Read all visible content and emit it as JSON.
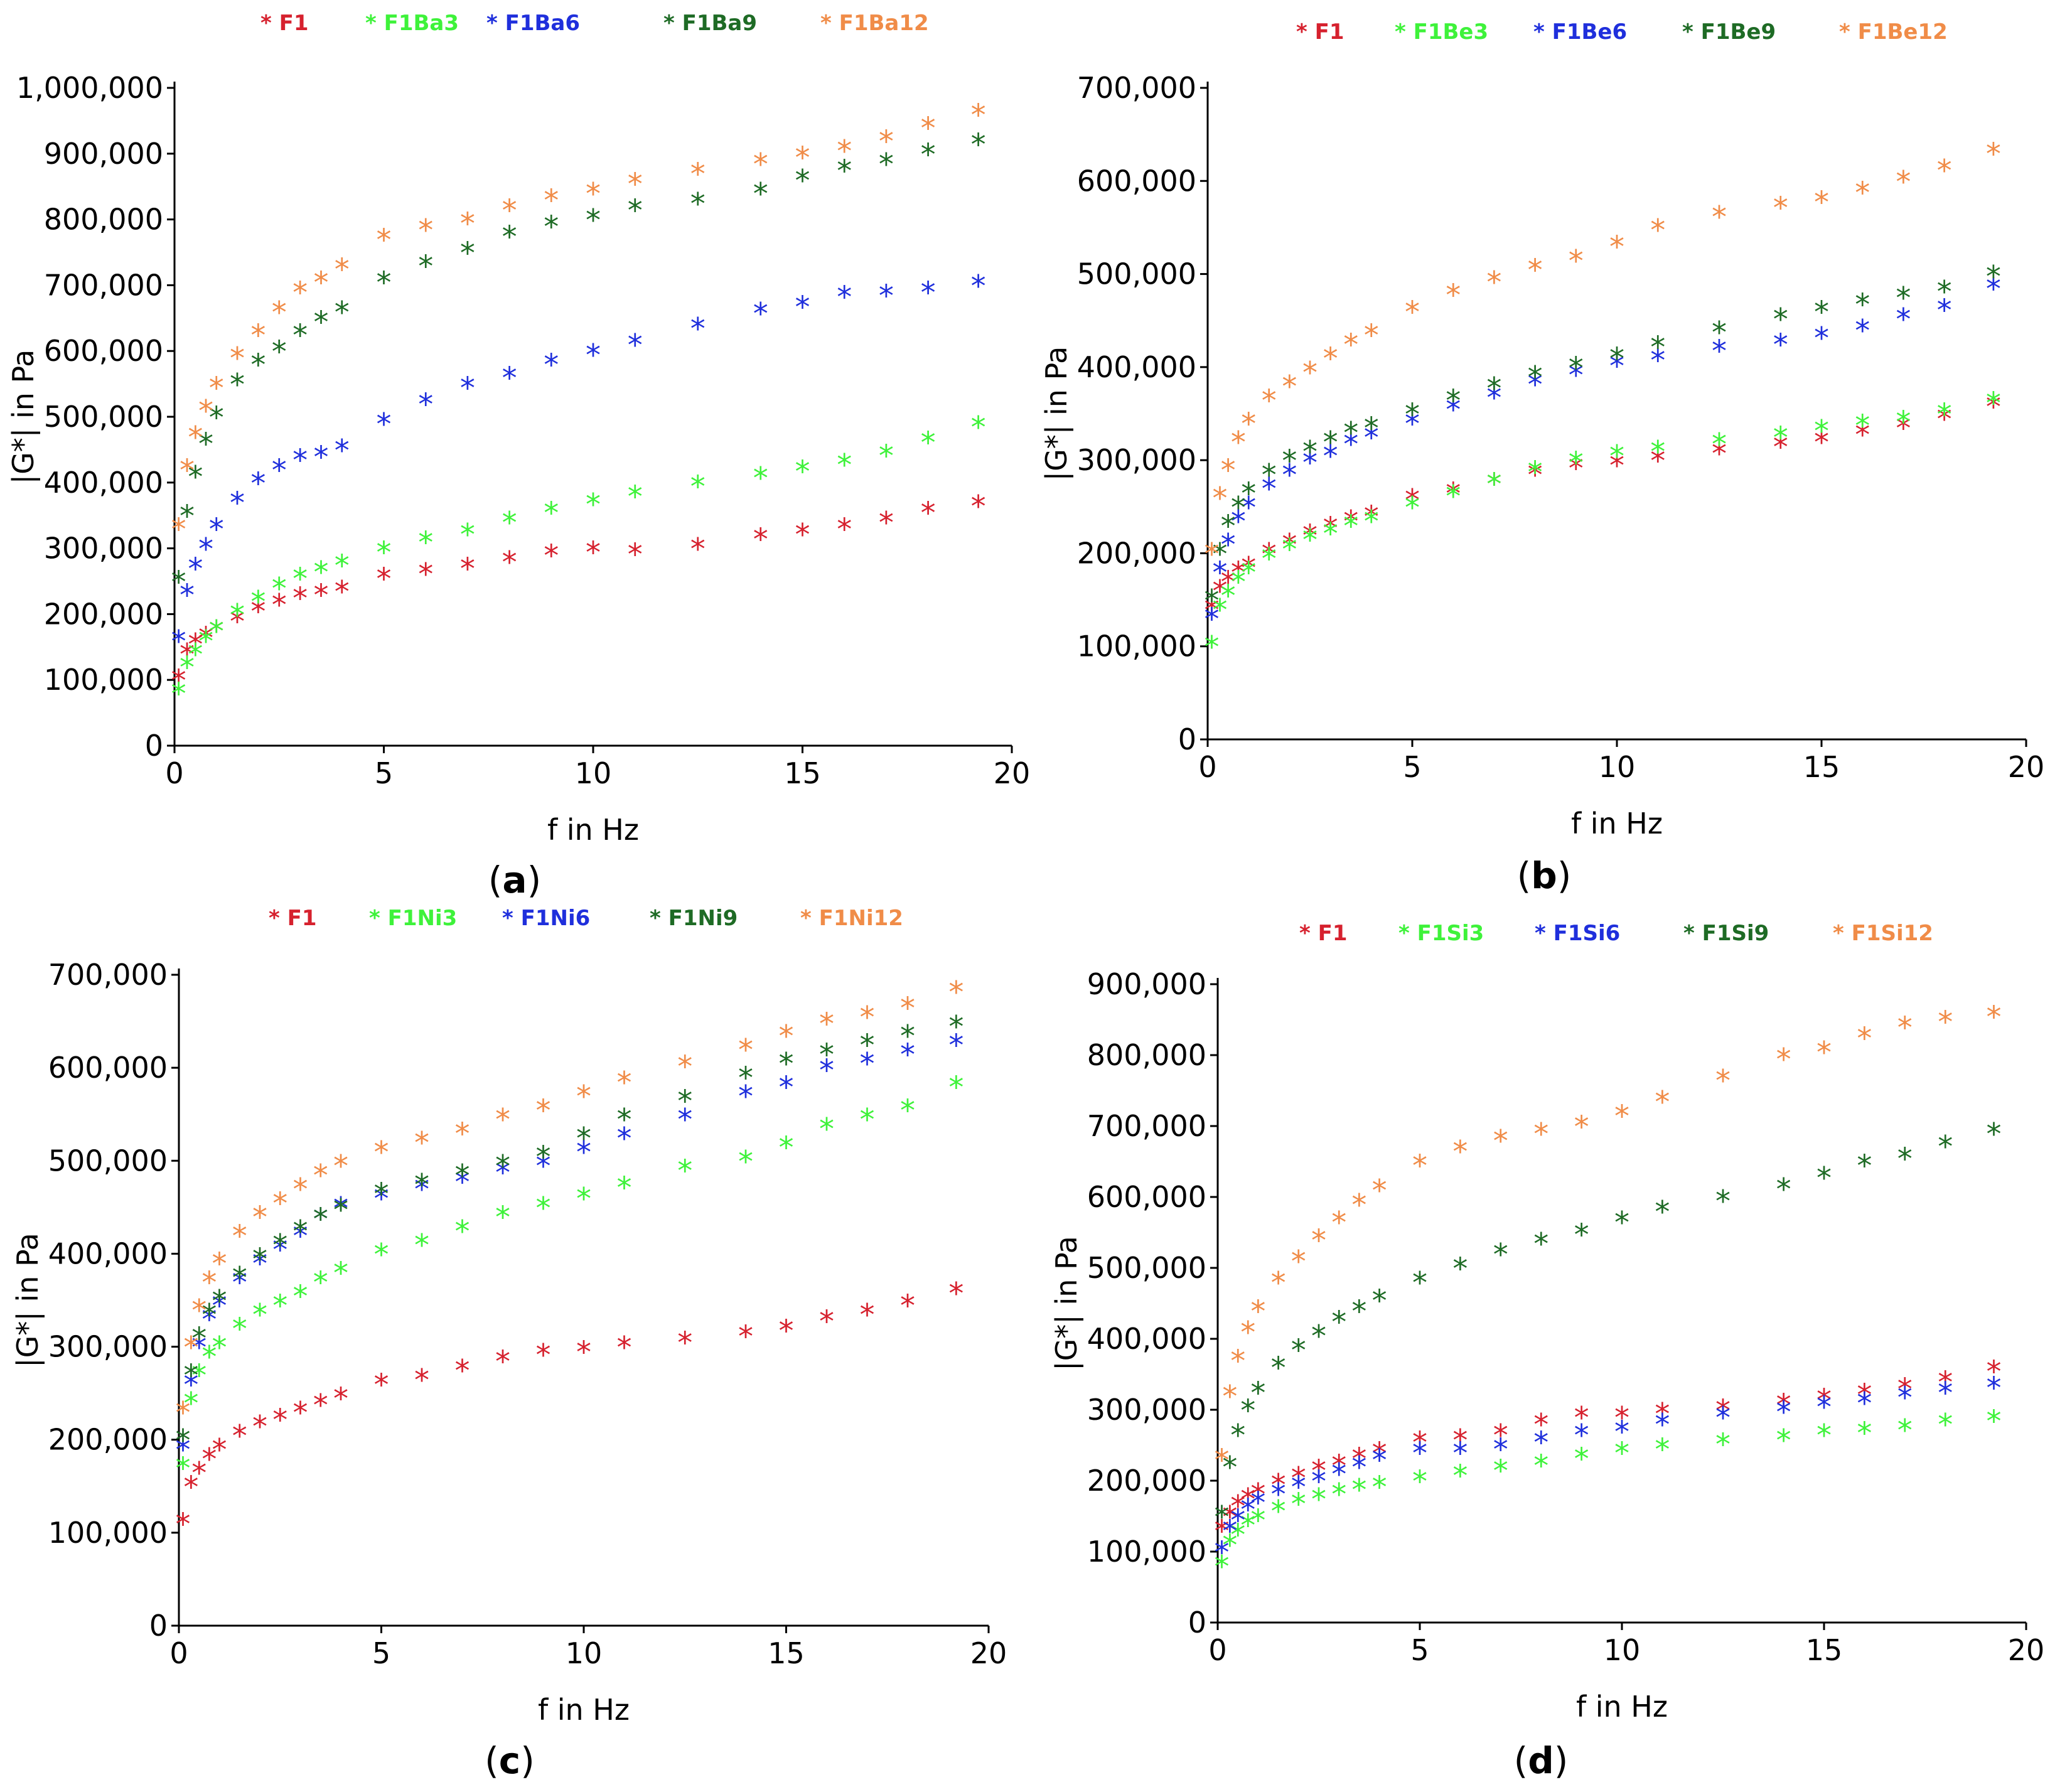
{
  "chart_data": [
    {
      "panel": "a",
      "label_open": "(",
      "label_letter": "a",
      "label_close": ")",
      "type": "scatter",
      "xlabel": "f in Hz",
      "ylabel": "|G*| in Pa",
      "xlim": [
        0,
        20
      ],
      "ylim": [
        0,
        1000000
      ],
      "xticks": [
        0,
        5,
        10,
        15,
        20
      ],
      "xtick_labels": [
        "0",
        "5",
        "10",
        "15",
        "20"
      ],
      "yticks": [
        0,
        100000,
        200000,
        300000,
        400000,
        500000,
        600000,
        700000,
        800000,
        900000,
        1000000
      ],
      "ytick_labels": [
        "0",
        "100,000",
        "200,000",
        "300,000",
        "400,000",
        "500,000",
        "600,000",
        "700,000",
        "800,000",
        "900,000",
        "1,000,000"
      ],
      "marker": "*",
      "x": [
        0.1,
        0.3,
        0.5,
        0.75,
        1.0,
        1.5,
        2.0,
        2.5,
        3.0,
        3.5,
        4.0,
        5.0,
        6.0,
        7.0,
        8.0,
        9.0,
        10.0,
        11.0,
        12.5,
        14.0,
        15.0,
        16.0,
        17.0,
        18.0,
        19.2
      ],
      "series": [
        {
          "name": "F1",
          "color": "#d6212e",
          "values": [
            100000,
            140000,
            155000,
            165000,
            175000,
            190000,
            205000,
            215000,
            225000,
            230000,
            235000,
            255000,
            262000,
            270000,
            280000,
            290000,
            295000,
            292000,
            300000,
            315000,
            322000,
            330000,
            340000,
            355000,
            365000
          ]
        },
        {
          "name": "F1Ba3",
          "color": "#3ef23a",
          "values": [
            80000,
            120000,
            140000,
            160000,
            175000,
            200000,
            220000,
            240000,
            255000,
            265000,
            275000,
            295000,
            310000,
            322000,
            340000,
            355000,
            368000,
            380000,
            395000,
            408000,
            418000,
            428000,
            442000,
            462000,
            485000
          ]
        },
        {
          "name": "F1Ba6",
          "color": "#1f2fdc",
          "values": [
            160000,
            230000,
            270000,
            300000,
            330000,
            370000,
            400000,
            420000,
            435000,
            440000,
            450000,
            490000,
            520000,
            545000,
            560000,
            580000,
            595000,
            610000,
            635000,
            658000,
            668000,
            683000,
            685000,
            690000,
            700000
          ]
        },
        {
          "name": "F1Ba9",
          "color": "#1e6b25",
          "values": [
            250000,
            350000,
            410000,
            460000,
            500000,
            550000,
            580000,
            600000,
            625000,
            645000,
            660000,
            705000,
            730000,
            750000,
            775000,
            790000,
            800000,
            815000,
            825000,
            840000,
            860000,
            875000,
            885000,
            900000,
            915000
          ]
        },
        {
          "name": "F1Ba12",
          "color": "#f08c48",
          "values": [
            330000,
            420000,
            470000,
            510000,
            545000,
            590000,
            625000,
            660000,
            690000,
            705000,
            725000,
            770000,
            785000,
            795000,
            815000,
            830000,
            840000,
            855000,
            870000,
            885000,
            895000,
            905000,
            920000,
            940000,
            960000
          ]
        }
      ]
    },
    {
      "panel": "b",
      "label_open": "(",
      "label_letter": "b",
      "label_close": ")",
      "type": "scatter",
      "xlabel": "f in Hz",
      "ylabel": "|G*| in Pa",
      "xlim": [
        0,
        20
      ],
      "ylim": [
        0,
        700000
      ],
      "xticks": [
        0,
        5,
        10,
        15,
        20
      ],
      "xtick_labels": [
        "0",
        "5",
        "10",
        "15",
        "20"
      ],
      "yticks": [
        0,
        100000,
        200000,
        300000,
        400000,
        500000,
        600000,
        700000
      ],
      "ytick_labels": [
        "0",
        "100,000",
        "200,000",
        "300,000",
        "400,000",
        "500,000",
        "600,000",
        "700,000"
      ],
      "marker": "*",
      "x": [
        0.1,
        0.3,
        0.5,
        0.75,
        1.0,
        1.5,
        2.0,
        2.5,
        3.0,
        3.5,
        4.0,
        5.0,
        6.0,
        7.0,
        8.0,
        9.0,
        10.0,
        11.0,
        12.5,
        14.0,
        15.0,
        16.0,
        17.0,
        18.0,
        19.2
      ],
      "series": [
        {
          "name": "F1",
          "color": "#d6212e",
          "values": [
            140000,
            160000,
            170000,
            180000,
            185000,
            200000,
            210000,
            220000,
            228000,
            235000,
            240000,
            258000,
            265000,
            275000,
            285000,
            292000,
            295000,
            300000,
            308000,
            315000,
            320000,
            328000,
            335000,
            345000,
            358000
          ]
        },
        {
          "name": "F1Be3",
          "color": "#3ef23a",
          "values": [
            100000,
            140000,
            155000,
            170000,
            180000,
            195000,
            205000,
            215000,
            222000,
            230000,
            235000,
            250000,
            262000,
            275000,
            288000,
            298000,
            305000,
            310000,
            318000,
            325000,
            332000,
            338000,
            342000,
            350000,
            362000
          ]
        },
        {
          "name": "F1Be6",
          "color": "#1f2fdc",
          "values": [
            130000,
            180000,
            210000,
            235000,
            250000,
            270000,
            285000,
            298000,
            305000,
            318000,
            325000,
            340000,
            355000,
            368000,
            382000,
            392000,
            402000,
            408000,
            418000,
            425000,
            432000,
            440000,
            452000,
            462000,
            485000
          ]
        },
        {
          "name": "F1Be9",
          "color": "#1e6b25",
          "values": [
            150000,
            200000,
            230000,
            250000,
            265000,
            285000,
            300000,
            310000,
            320000,
            330000,
            335000,
            350000,
            365000,
            378000,
            390000,
            400000,
            410000,
            422000,
            438000,
            452000,
            460000,
            468000,
            475000,
            482000,
            498000
          ]
        },
        {
          "name": "F1Be12",
          "color": "#f08c48",
          "values": [
            200000,
            260000,
            290000,
            320000,
            340000,
            365000,
            380000,
            395000,
            410000,
            425000,
            435000,
            460000,
            478000,
            492000,
            505000,
            515000,
            530000,
            548000,
            562000,
            572000,
            578000,
            588000,
            600000,
            612000,
            630000
          ]
        }
      ]
    },
    {
      "panel": "c",
      "label_open": "(",
      "label_letter": "c",
      "label_close": ")",
      "type": "scatter",
      "xlabel": "f in Hz",
      "ylabel": "|G*| in Pa",
      "xlim": [
        0,
        20
      ],
      "ylim": [
        0,
        700000
      ],
      "xticks": [
        0,
        5,
        10,
        15,
        20
      ],
      "xtick_labels": [
        "0",
        "5",
        "10",
        "15",
        "20"
      ],
      "yticks": [
        0,
        100000,
        200000,
        300000,
        400000,
        500000,
        600000,
        700000
      ],
      "ytick_labels": [
        "0",
        "100,000",
        "200,000",
        "300,000",
        "400,000",
        "500,000",
        "600,000",
        "700,000"
      ],
      "marker": "*",
      "x": [
        0.1,
        0.3,
        0.5,
        0.75,
        1.0,
        1.5,
        2.0,
        2.5,
        3.0,
        3.5,
        4.0,
        5.0,
        6.0,
        7.0,
        8.0,
        9.0,
        10.0,
        11.0,
        12.5,
        14.0,
        15.0,
        16.0,
        17.0,
        18.0,
        19.2
      ],
      "series": [
        {
          "name": "F1",
          "color": "#d6212e",
          "values": [
            110000,
            150000,
            165000,
            180000,
            190000,
            205000,
            215000,
            222000,
            230000,
            238000,
            245000,
            260000,
            265000,
            275000,
            285000,
            292000,
            295000,
            300000,
            305000,
            312000,
            318000,
            328000,
            335000,
            345000,
            358000
          ]
        },
        {
          "name": "F1Ni3",
          "color": "#3ef23a",
          "values": [
            170000,
            240000,
            270000,
            290000,
            300000,
            320000,
            335000,
            345000,
            355000,
            370000,
            380000,
            400000,
            410000,
            425000,
            440000,
            450000,
            460000,
            472000,
            490000,
            500000,
            515000,
            535000,
            545000,
            555000,
            580000
          ]
        },
        {
          "name": "F1Ni6",
          "color": "#1f2fdc",
          "values": [
            190000,
            260000,
            300000,
            330000,
            345000,
            370000,
            390000,
            405000,
            420000,
            438000,
            450000,
            460000,
            470000,
            478000,
            488000,
            495000,
            510000,
            525000,
            545000,
            570000,
            580000,
            598000,
            605000,
            615000,
            625000
          ]
        },
        {
          "name": "F1Ni9",
          "color": "#1e6b25",
          "values": [
            200000,
            270000,
            310000,
            335000,
            350000,
            375000,
            395000,
            410000,
            425000,
            438000,
            448000,
            465000,
            475000,
            485000,
            495000,
            505000,
            525000,
            545000,
            565000,
            590000,
            605000,
            615000,
            625000,
            635000,
            645000
          ]
        },
        {
          "name": "F1Ni12",
          "color": "#f08c48",
          "values": [
            230000,
            300000,
            340000,
            370000,
            390000,
            420000,
            440000,
            455000,
            470000,
            485000,
            495000,
            510000,
            520000,
            530000,
            545000,
            555000,
            570000,
            585000,
            602000,
            620000,
            635000,
            648000,
            655000,
            665000,
            682000
          ]
        }
      ]
    },
    {
      "panel": "d",
      "label_open": "(",
      "label_letter": "d",
      "label_close": ")",
      "type": "scatter",
      "xlabel": "f in Hz",
      "ylabel": "|G*| in Pa",
      "xlim": [
        0,
        20
      ],
      "ylim": [
        0,
        900000
      ],
      "xticks": [
        0,
        5,
        10,
        15,
        20
      ],
      "xtick_labels": [
        "0",
        "5",
        "10",
        "15",
        "20"
      ],
      "yticks": [
        0,
        100000,
        200000,
        300000,
        400000,
        500000,
        600000,
        700000,
        800000,
        900000
      ],
      "ytick_labels": [
        "0",
        "100,000",
        "200,000",
        "300,000",
        "400,000",
        "500,000",
        "600,000",
        "700,000",
        "800,000",
        "900,000"
      ],
      "marker": "*",
      "x": [
        0.1,
        0.3,
        0.5,
        0.75,
        1.0,
        1.5,
        2.0,
        2.5,
        3.0,
        3.5,
        4.0,
        5.0,
        6.0,
        7.0,
        8.0,
        9.0,
        10.0,
        11.0,
        12.5,
        14.0,
        15.0,
        16.0,
        17.0,
        18.0,
        19.2
      ],
      "series": [
        {
          "name": "F1",
          "color": "#d6212e",
          "values": [
            130000,
            150000,
            165000,
            175000,
            182000,
            195000,
            205000,
            215000,
            222000,
            232000,
            240000,
            255000,
            258000,
            265000,
            280000,
            290000,
            290000,
            295000,
            300000,
            308000,
            315000,
            322000,
            330000,
            340000,
            355000
          ]
        },
        {
          "name": "F1Si3",
          "color": "#3ef23a",
          "values": [
            80000,
            110000,
            125000,
            138000,
            145000,
            158000,
            168000,
            175000,
            182000,
            188000,
            192000,
            200000,
            208000,
            215000,
            222000,
            232000,
            240000,
            245000,
            252000,
            258000,
            265000,
            268000,
            272000,
            280000,
            285000
          ]
        },
        {
          "name": "F1Si6",
          "color": "#1f2fdc",
          "values": [
            100000,
            130000,
            145000,
            160000,
            170000,
            182000,
            192000,
            200000,
            210000,
            220000,
            230000,
            240000,
            240000,
            245000,
            255000,
            265000,
            270000,
            280000,
            290000,
            298000,
            305000,
            310000,
            318000,
            325000,
            332000
          ]
        },
        {
          "name": "F1Si9",
          "color": "#1e6b25",
          "values": [
            150000,
            220000,
            265000,
            300000,
            325000,
            360000,
            385000,
            405000,
            425000,
            440000,
            455000,
            480000,
            500000,
            520000,
            535000,
            548000,
            565000,
            580000,
            595000,
            612000,
            628000,
            645000,
            655000,
            672000,
            690000
          ]
        },
        {
          "name": "F1Si12",
          "color": "#f08c48",
          "values": [
            230000,
            320000,
            370000,
            410000,
            440000,
            480000,
            510000,
            540000,
            565000,
            590000,
            610000,
            645000,
            665000,
            680000,
            690000,
            700000,
            715000,
            735000,
            765000,
            795000,
            805000,
            825000,
            840000,
            848000,
            855000
          ]
        }
      ]
    }
  ]
}
